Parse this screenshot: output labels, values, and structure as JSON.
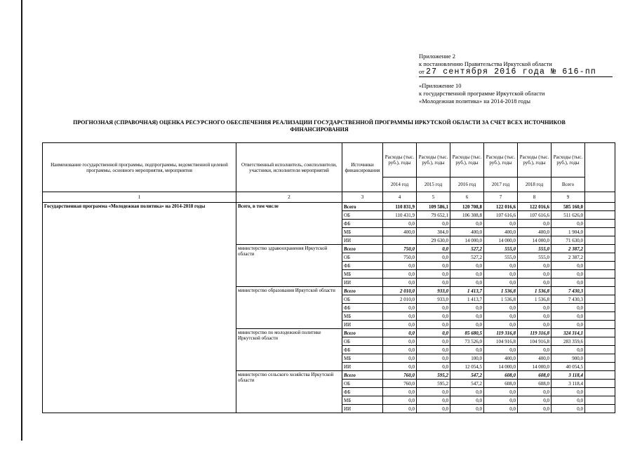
{
  "page": {
    "header": {
      "appendix_no": "Приложение 2",
      "decree_line": "к постановлению Правительства Иркутской области",
      "date_prefix": "от",
      "date_value": "27 сентября 2016 года № 616-пп",
      "appendix10_line": "«Приложение 10",
      "program_ref_line": "к государственной программе Иркутской области",
      "program_name_line": "«Молодежная политика» на 2014-2018 годы"
    },
    "title": {
      "line1": "ПРОГНОЗНАЯ (СПРАВОЧНАЯ) ОЦЕНКА РЕСУРСНОГО ОБЕСПЕЧЕНИЯ РЕАЛИЗАЦИИ ГОСУДАРСТВЕННОЙ ПРОГРАММЫ ИРКУТСКОЙ ОБЛАСТИ ЗА СЧЕТ ВСЕХ ИСТОЧНИКОВ",
      "line2": "ФИНАНСИРОВАНИЯ"
    }
  },
  "table": {
    "headers": {
      "name": "Наименование государственной программы, подпрограммы, ведомственной целевой программы, основного мероприятия, мероприятия",
      "executor": "Ответственный исполнитель, соисполнители, участники, исполнители мероприятий",
      "sources": "Источники финансирования",
      "expense_label": "Расходы (тыс. руб.), годы",
      "years": [
        "2014 год",
        "2015 год",
        "2016 год",
        "2017 год",
        "2018 год",
        "Всего"
      ],
      "column_numbers": [
        "1",
        "2",
        "3",
        "4",
        "5",
        "6",
        "7",
        "8",
        "9"
      ]
    },
    "program_name": "Государственная программа «Молодежная политика» на 2014-2018 годы",
    "groups": [
      {
        "executor": "Всего, в том числе",
        "bold": true,
        "rows": [
          {
            "source": "Всего",
            "style": "bold",
            "values": [
              "110 831,9",
              "109 586,1",
              "120 708,8",
              "122 016,6",
              "122 016,6",
              "585 160,0"
            ]
          },
          {
            "source": "ОБ",
            "values": [
              "110 431,9",
              "79 652,1",
              "106 308,8",
              "107 616,6",
              "107 616,6",
              "511 626,0"
            ]
          },
          {
            "source": "ФБ",
            "values": [
              "0,0",
              "0,0",
              "0,0",
              "0,0",
              "0,0",
              "0,0"
            ]
          },
          {
            "source": "МБ",
            "values": [
              "400,0",
              "304,0",
              "400,0",
              "400,0",
              "400,0",
              "1 904,0"
            ]
          },
          {
            "source": "ИИ",
            "values": [
              "",
              "29 630,0",
              "14 000,0",
              "14 000,0",
              "14 000,0",
              "71 630,0"
            ]
          }
        ]
      },
      {
        "executor": "министерство здравоохранения Иркутской области",
        "bold": false,
        "rows": [
          {
            "source": "Всего",
            "style": "bold-italic",
            "values": [
              "750,0",
              "0,0",
              "527,2",
              "555,0",
              "555,0",
              "2 387,2"
            ]
          },
          {
            "source": "ОБ",
            "values": [
              "750,0",
              "0,0",
              "527,2",
              "555,0",
              "555,0",
              "2 387,2"
            ]
          },
          {
            "source": "ФБ",
            "values": [
              "0,0",
              "0,0",
              "0,0",
              "0,0",
              "0,0",
              "0,0"
            ]
          },
          {
            "source": "МБ",
            "values": [
              "0,0",
              "0,0",
              "0,0",
              "0,0",
              "0,0",
              "0,0"
            ]
          },
          {
            "source": "ИИ",
            "values": [
              "0,0",
              "0,0",
              "0,0",
              "0,0",
              "0,0",
              "0,0"
            ]
          }
        ]
      },
      {
        "executor": "министерство образования Иркутской области",
        "bold": false,
        "rows": [
          {
            "source": "Всего",
            "style": "bold-italic",
            "values": [
              "2 010,0",
              "933,0",
              "1 413,7",
              "1 536,8",
              "1 536,8",
              "7 430,3"
            ]
          },
          {
            "source": "ОБ",
            "values": [
              "2 010,0",
              "933,0",
              "1 413,7",
              "1 536,8",
              "1 536,8",
              "7 430,3"
            ]
          },
          {
            "source": "ФБ",
            "values": [
              "0,0",
              "0,0",
              "0,0",
              "0,0",
              "0,0",
              "0,0"
            ]
          },
          {
            "source": "МБ",
            "values": [
              "0,0",
              "0,0",
              "0,0",
              "0,0",
              "0,0",
              "0,0"
            ]
          },
          {
            "source": "ИИ",
            "values": [
              "0,0",
              "0,0",
              "0,0",
              "0,0",
              "0,0",
              "0,0"
            ]
          }
        ]
      },
      {
        "executor": "министерство по молодежной политике Иркутской области",
        "bold": false,
        "rows": [
          {
            "source": "Всего",
            "style": "bold-italic",
            "values": [
              "0,0",
              "0,0",
              "85 680,5",
              "119 316,8",
              "119 316,8",
              "324 314,1"
            ]
          },
          {
            "source": "ОБ",
            "values": [
              "0,0",
              "0,0",
              "73 526,0",
              "104 916,8",
              "104 916,8",
              "283 359,6"
            ]
          },
          {
            "source": "ФБ",
            "values": [
              "0,0",
              "0,0",
              "0,0",
              "0,0",
              "0,0",
              "0,0"
            ]
          },
          {
            "source": "МБ",
            "values": [
              "0,0",
              "0,0",
              "100,0",
              "400,0",
              "400,0",
              "900,0"
            ]
          },
          {
            "source": "ИИ",
            "values": [
              "0,0",
              "0,0",
              "12 054,5",
              "14 000,0",
              "14 000,0",
              "40 054,5"
            ]
          }
        ]
      },
      {
        "executor": "министерство сельского хозяйства Иркутской области",
        "bold": false,
        "rows": [
          {
            "source": "Всего",
            "style": "bold-italic",
            "values": [
              "760,0",
              "595,2",
              "547,2",
              "608,0",
              "608,0",
              "3 118,4"
            ]
          },
          {
            "source": "ОБ",
            "values": [
              "760,0",
              "595,2",
              "547,2",
              "608,0",
              "608,0",
              "3 118,4"
            ]
          },
          {
            "source": "ФБ",
            "values": [
              "0,0",
              "0,0",
              "0,0",
              "0,0",
              "0,0",
              "0,0"
            ]
          },
          {
            "source": "МБ",
            "values": [
              "0,0",
              "0,0",
              "0,0",
              "0,0",
              "0,0",
              "0,0"
            ]
          },
          {
            "source": "ИИ",
            "values": [
              "0,0",
              "0,0",
              "0,0",
              "0,0",
              "0,0",
              "0,0"
            ]
          }
        ]
      }
    ]
  }
}
